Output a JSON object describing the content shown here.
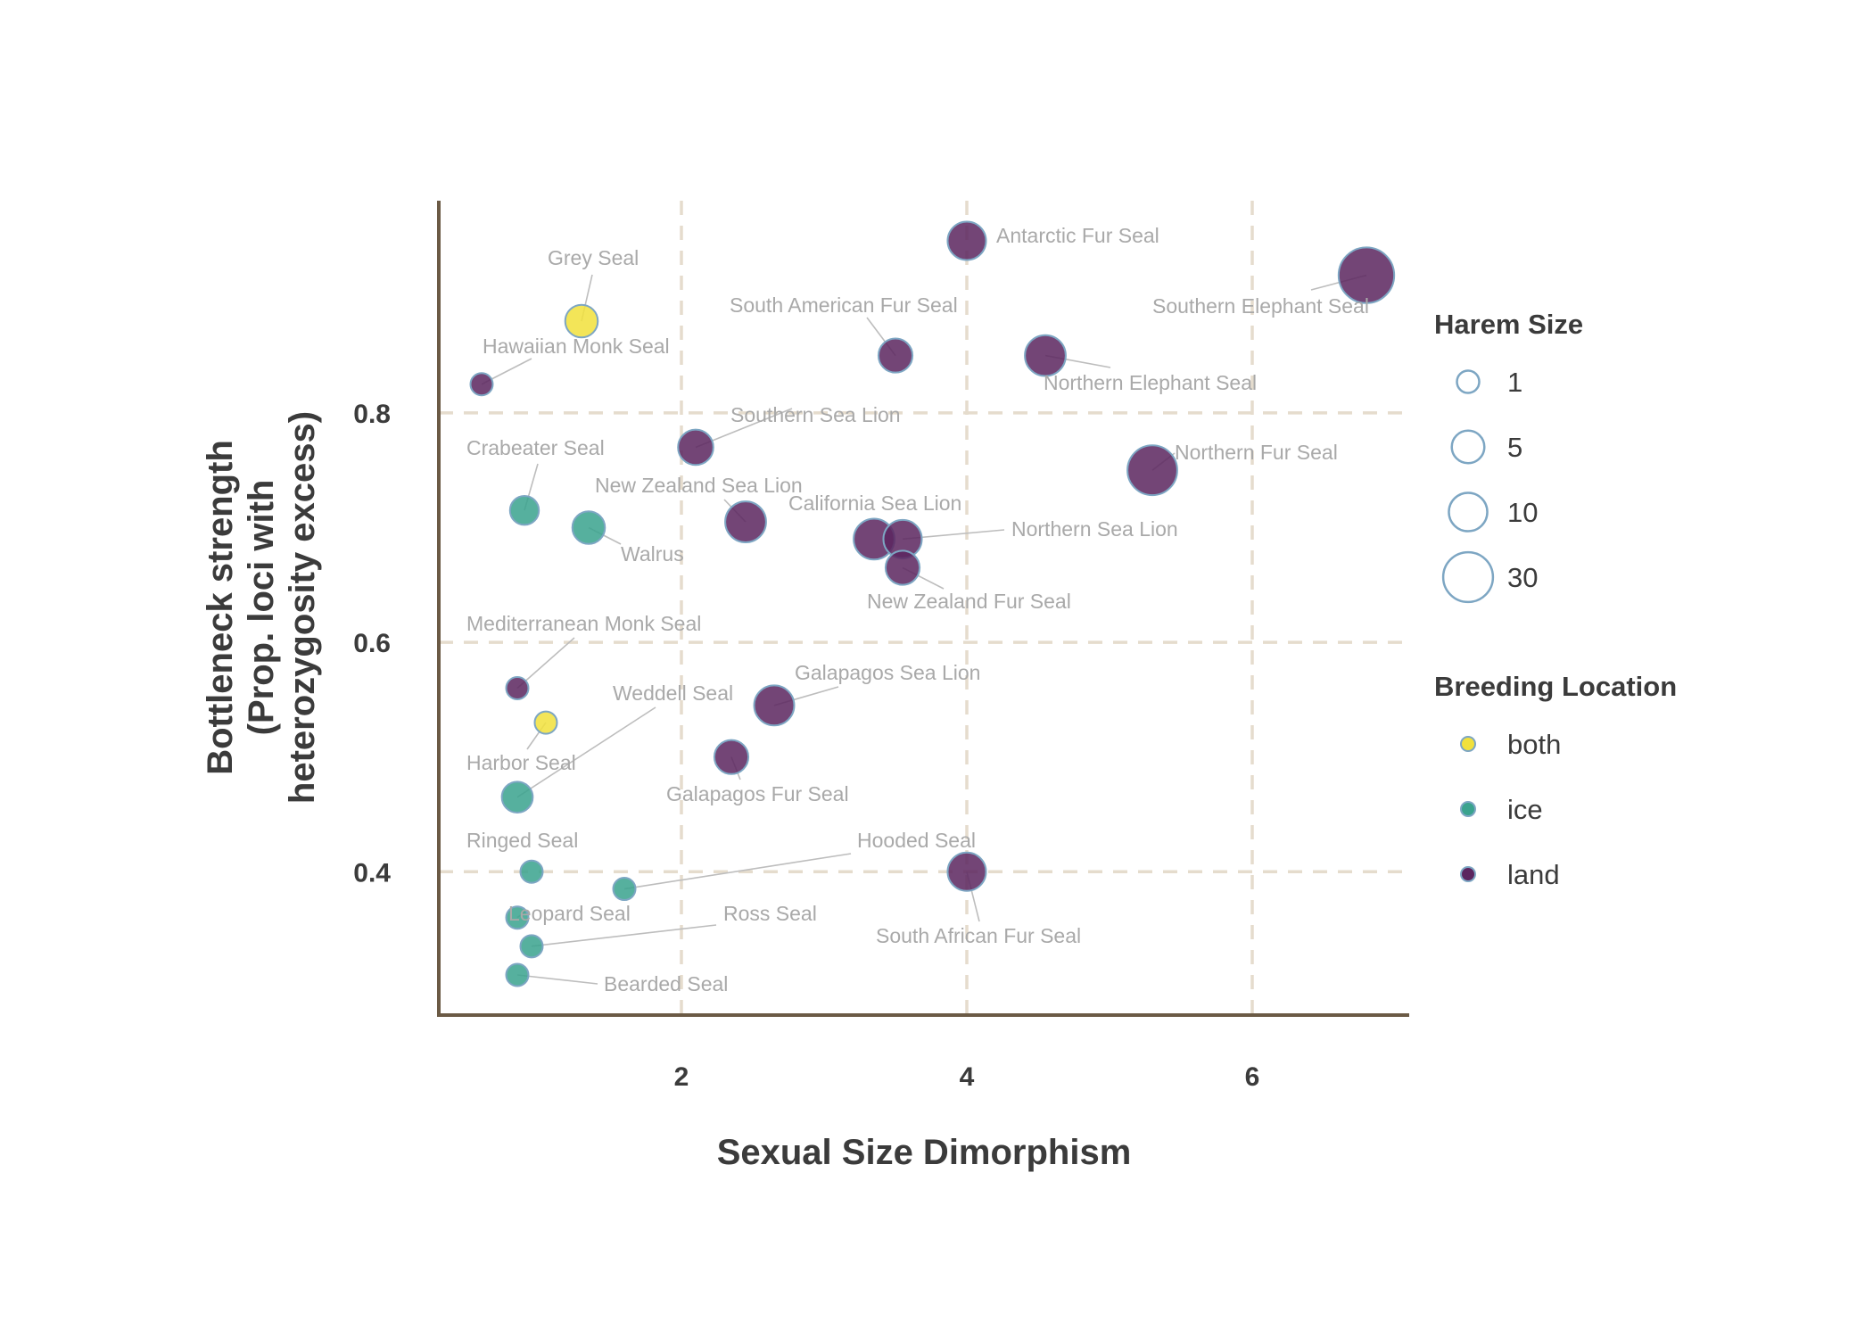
{
  "chart_data": {
    "type": "scatter",
    "title": "",
    "xlabel": "Sexual Size Dimorphism",
    "ylabel_lines": [
      "Bottleneck strength",
      "(Prop. loci with",
      "heterozygosity excess)"
    ],
    "xlim": [
      0.3,
      7.1
    ],
    "ylim": [
      0.275,
      0.985
    ],
    "x_ticks": [
      2,
      4,
      6
    ],
    "y_ticks": [
      0.4,
      0.6,
      0.8
    ],
    "x_tick_labels": [
      "2",
      "4",
      "6"
    ],
    "y_tick_labels": [
      "0.4",
      "0.6",
      "0.8"
    ],
    "grid": true,
    "colors": {
      "both": "#f1e13c",
      "ice": "#3aa38e",
      "land": "#5c2660",
      "outline": "#7da6c3"
    },
    "size_legend": {
      "title": "Harem Size",
      "entries": [
        {
          "label": "1",
          "value": 1
        },
        {
          "label": "5",
          "value": 5
        },
        {
          "label": "10",
          "value": 10
        },
        {
          "label": "30",
          "value": 30
        }
      ]
    },
    "color_legend": {
      "title": "Breeding Location",
      "entries": [
        {
          "label": "both",
          "key": "both"
        },
        {
          "label": "ice",
          "key": "ice"
        },
        {
          "label": "land",
          "key": "land"
        }
      ]
    },
    "points": [
      {
        "name": "Antarctic Fur Seal",
        "x": 4.0,
        "y": 0.95,
        "harem": 10,
        "location": "land"
      },
      {
        "name": "Southern Elephant Seal",
        "x": 6.8,
        "y": 0.92,
        "harem": 48,
        "location": "land"
      },
      {
        "name": "Grey Seal",
        "x": 1.3,
        "y": 0.88,
        "harem": 5,
        "location": "both"
      },
      {
        "name": "South American Fur Seal",
        "x": 3.5,
        "y": 0.85,
        "harem": 6,
        "location": "land"
      },
      {
        "name": "Northern Elephant Seal",
        "x": 4.55,
        "y": 0.85,
        "harem": 13,
        "location": "land"
      },
      {
        "name": "Hawaiian Monk Seal",
        "x": 0.6,
        "y": 0.825,
        "harem": 1,
        "location": "land"
      },
      {
        "name": "Southern Sea Lion",
        "x": 2.1,
        "y": 0.77,
        "harem": 7,
        "location": "land"
      },
      {
        "name": "Northern Fur Seal",
        "x": 5.3,
        "y": 0.75,
        "harem": 30,
        "location": "land"
      },
      {
        "name": "Crabeater Seal",
        "x": 0.9,
        "y": 0.715,
        "harem": 3,
        "location": "ice"
      },
      {
        "name": "New Zealand Sea Lion",
        "x": 2.45,
        "y": 0.705,
        "harem": 13,
        "location": "land"
      },
      {
        "name": "Walrus",
        "x": 1.35,
        "y": 0.7,
        "harem": 5,
        "location": "ice"
      },
      {
        "name": "California Sea Lion",
        "x": 3.35,
        "y": 0.69,
        "harem": 13,
        "location": "land"
      },
      {
        "name": "Northern Sea Lion",
        "x": 3.55,
        "y": 0.69,
        "harem": 10,
        "location": "land"
      },
      {
        "name": "New Zealand Fur Seal",
        "x": 3.55,
        "y": 0.665,
        "harem": 6,
        "location": "land"
      },
      {
        "name": "Mediterranean Monk Seal",
        "x": 0.85,
        "y": 0.56,
        "harem": 1,
        "location": "land"
      },
      {
        "name": "Galapagos Sea Lion",
        "x": 2.65,
        "y": 0.545,
        "harem": 12,
        "location": "land"
      },
      {
        "name": "Harbor Seal",
        "x": 1.05,
        "y": 0.53,
        "harem": 1,
        "location": "both"
      },
      {
        "name": "Galapagos Fur Seal",
        "x": 2.35,
        "y": 0.5,
        "harem": 6,
        "location": "land"
      },
      {
        "name": "Weddell Seal",
        "x": 0.85,
        "y": 0.465,
        "harem": 4,
        "location": "ice"
      },
      {
        "name": "South African Fur Seal",
        "x": 4.0,
        "y": 0.4,
        "harem": 10,
        "location": "land"
      },
      {
        "name": "Ringed Seal",
        "x": 0.95,
        "y": 0.4,
        "harem": 1,
        "location": "ice"
      },
      {
        "name": "Hooded Seal",
        "x": 1.6,
        "y": 0.385,
        "harem": 1,
        "location": "ice"
      },
      {
        "name": "Leopard Seal",
        "x": 0.85,
        "y": 0.36,
        "harem": 1,
        "location": "ice"
      },
      {
        "name": "Ross Seal",
        "x": 0.95,
        "y": 0.335,
        "harem": 1,
        "location": "ice"
      },
      {
        "name": "Bearded Seal",
        "x": 0.85,
        "y": 0.31,
        "harem": 1,
        "location": "ice"
      }
    ]
  }
}
